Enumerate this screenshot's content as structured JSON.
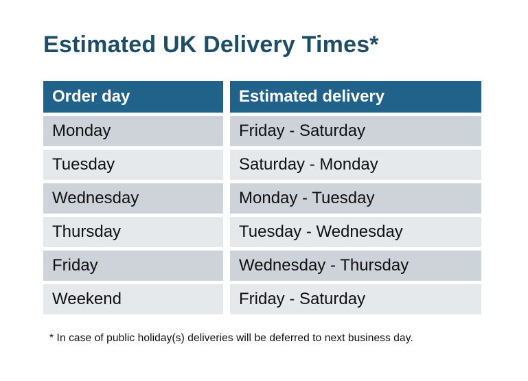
{
  "title": "Estimated UK Delivery Times*",
  "table": {
    "headers": [
      "Order day",
      "Estimated delivery"
    ],
    "rows": [
      {
        "order_day": "Monday",
        "delivery": "Friday - Saturday"
      },
      {
        "order_day": "Tuesday",
        "delivery": "Saturday - Monday"
      },
      {
        "order_day": "Wednesday",
        "delivery": "Monday - Tuesday"
      },
      {
        "order_day": "Thursday",
        "delivery": "Tuesday - Wednesday"
      },
      {
        "order_day": "Friday",
        "delivery": "Wednesday - Thursday"
      },
      {
        "order_day": "Weekend",
        "delivery": "Friday - Saturday"
      }
    ]
  },
  "footnote": "* In case of public holiday(s) deliveries will be deferred to next business day.",
  "colors": {
    "header_bg": "#21628A",
    "row_dark": "#CED3D9",
    "row_light": "#E5E9EC",
    "title_text": "#1E4D66",
    "body_text": "#101010",
    "page_bg": "#FFFFFF"
  }
}
